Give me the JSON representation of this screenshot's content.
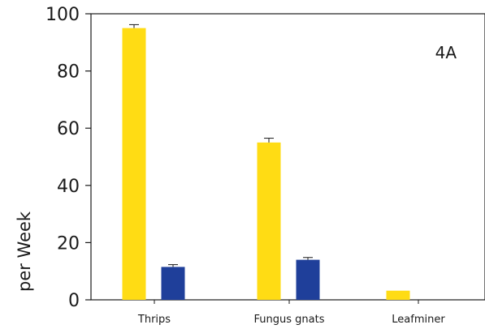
{
  "chart_data": {
    "type": "bar",
    "panel_label": "4A",
    "ylabel": "per Week",
    "ylim": [
      0,
      100
    ],
    "yticks": [
      0,
      20,
      40,
      60,
      80,
      100
    ],
    "categories": [
      "Thrips",
      "Fungus gnats",
      "Leafminer"
    ],
    "series": [
      {
        "color": "#ffdc14",
        "values": [
          95,
          55,
          3.2
        ],
        "errors": [
          1.2,
          1.5,
          null
        ]
      },
      {
        "color": "#1f3f9a",
        "values": [
          11.5,
          14,
          null
        ],
        "errors": [
          0.8,
          0.8,
          null
        ]
      }
    ],
    "grid": false,
    "legend": "none"
  }
}
